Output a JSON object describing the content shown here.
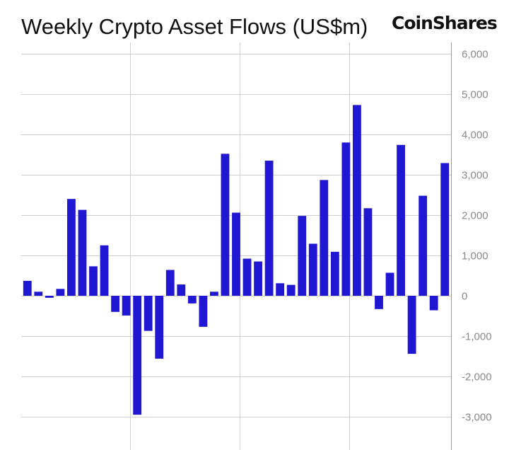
{
  "title": "Weekly Crypto Asset Flows (US$m)",
  "brand": "CoinShares",
  "colors": {
    "bar": "#1f17d1",
    "grid": "#cfcfcf",
    "axis": "#999999",
    "tick_text": "#8a8a8a",
    "title": "#111111"
  },
  "chart_data": {
    "type": "bar",
    "title": "Weekly Crypto Asset Flows (US$m)",
    "xlabel": "",
    "ylabel": "",
    "ylim": [
      -3500,
      6000
    ],
    "yticks": [
      6000,
      5000,
      4000,
      3000,
      2000,
      1000,
      0,
      -1000,
      -2000,
      -3000
    ],
    "ytick_labels": [
      "6,000",
      "5,000",
      "4,000",
      "3,000",
      "2,000",
      "1,000",
      "0",
      "-1,000",
      "-2,000",
      "-3,000"
    ],
    "axis_side": "right",
    "grid": true,
    "vertical_gridlines_after_bar": [
      9,
      19,
      29
    ],
    "values": [
      370,
      100,
      -50,
      170,
      2400,
      2130,
      730,
      1250,
      -400,
      -490,
      -2950,
      -870,
      -1560,
      640,
      280,
      -190,
      -770,
      100,
      3520,
      2060,
      920,
      850,
      3350,
      310,
      270,
      1980,
      1290,
      2870,
      1090,
      3800,
      4730,
      2170,
      -330,
      570,
      3740,
      -1440,
      2480,
      -360,
      3290
    ]
  }
}
